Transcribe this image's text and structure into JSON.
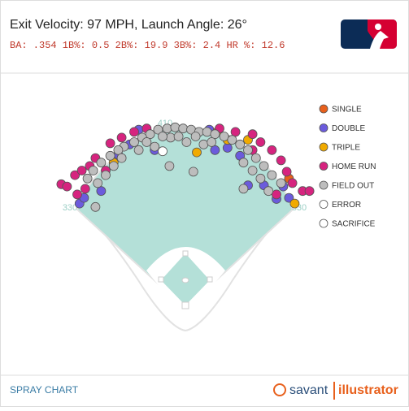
{
  "chart_data": {
    "type": "scatter",
    "title": "Exit Velocity: 97 MPH, Launch Angle: 26°",
    "subtitle": "BA: .354 1B%: 0.5 2B%: 19.9 3B%: 2.4 HR %: 12.6",
    "footer": "SPRAY CHART",
    "brand": [
      "savant",
      "illustrator"
    ],
    "fence_labels": [
      "410",
      "330",
      "330"
    ],
    "xlim": [
      0,
      250
    ],
    "ylim": [
      250,
      0
    ],
    "series": [
      {
        "name": "SINGLE",
        "color": "#e8601c",
        "x": [
          216
        ],
        "y": [
          87
        ]
      },
      {
        "name": "DOUBLE",
        "color": "#6b5bdc",
        "x": [
          32,
          36,
          51,
          66,
          76,
          98,
          146,
          162,
          173,
          180,
          205,
          211,
          216,
          151,
          84,
          194
        ],
        "y": [
          109,
          104,
          98,
          66,
          57,
          62,
          44,
          60,
          67,
          93,
          105,
          94,
          104,
          62,
          44,
          93
        ]
      },
      {
        "name": "TRIPLE",
        "color": "#f0aa00",
        "x": [
          153,
          162,
          62,
          221,
          180,
          135
        ],
        "y": [
          46,
          53,
          73,
          109,
          53,
          64
        ]
      },
      {
        "name": "HOME RUN",
        "color": "#d6247f",
        "x": [
          16,
          21,
          28,
          34,
          41,
          46,
          59,
          69,
          80,
          91,
          155,
          169,
          184,
          191,
          201,
          209,
          214,
          219,
          228,
          234,
          30,
          37,
          205,
          55,
          184
        ],
        "y": [
          92,
          94,
          84,
          80,
          76,
          69,
          56,
          51,
          46,
          43,
          43,
          46,
          48,
          55,
          62,
          71,
          81,
          91,
          98,
          98,
          101,
          96,
          101,
          80,
          62
        ]
      },
      {
        "name": "FIELD OUT",
        "color": "#bdbdbd",
        "x": [
          101,
          109,
          116,
          123,
          130,
          137,
          144,
          151,
          159,
          94,
          87,
          80,
          71,
          66,
          59,
          51,
          44,
          39,
          48,
          55,
          62,
          166,
          173,
          180,
          187,
          194,
          201,
          209,
          191,
          198,
          176,
          112,
          126,
          141,
          98,
          84,
          132,
          111,
          176,
          46,
          105,
          119,
          134,
          148,
          91,
          69,
          184
        ],
        "y": [
          44,
          43,
          42,
          43,
          44,
          46,
          46,
          48,
          50,
          48,
          51,
          55,
          59,
          62,
          67,
          73,
          80,
          87,
          91,
          84,
          76,
          53,
          57,
          62,
          69,
          76,
          84,
          91,
          87,
          98,
          73,
          51,
          55,
          57,
          59,
          62,
          81,
          76,
          96,
          112,
          50,
          50,
          50,
          55,
          55,
          69,
          80
        ]
      },
      {
        "name": "ERROR",
        "color": "#ffffff",
        "x": [
          105
        ],
        "y": [
          63
        ]
      },
      {
        "name": "SACRIFICE",
        "color": "#ffffff",
        "x": [],
        "y": []
      }
    ]
  }
}
